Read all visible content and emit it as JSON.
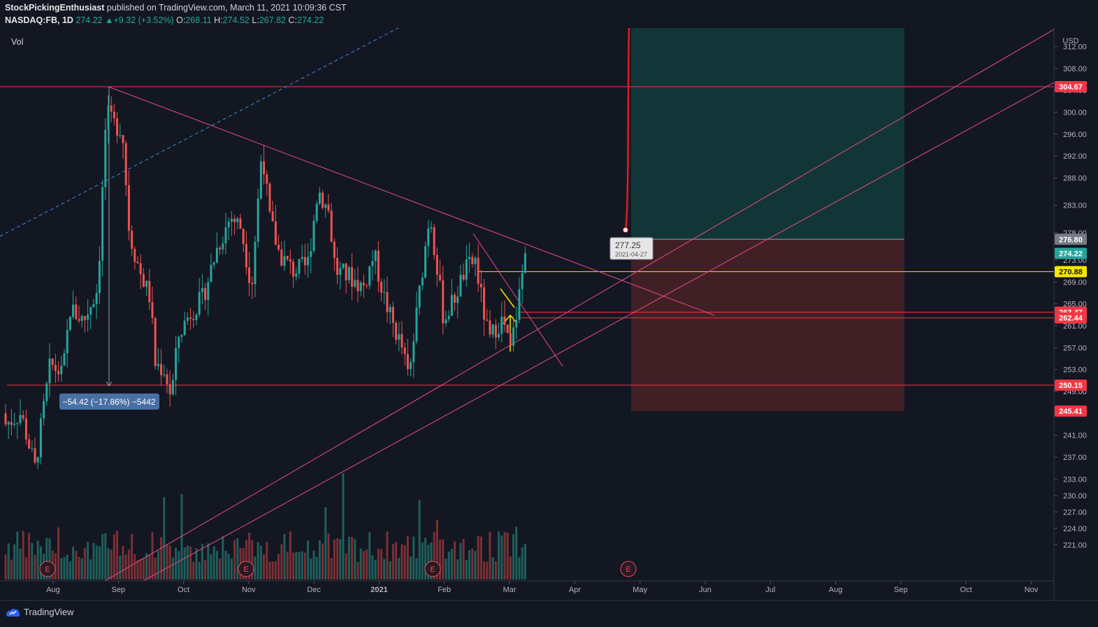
{
  "header": {
    "author": "StockPickingEnthusiast",
    "published_text": "published on TradingView.com, March 11, 2021 10:09:36 CST",
    "symbol": "NASDAQ:FB, 1D",
    "last": "274.22",
    "change": "+9.32 (+3.52%)",
    "o_label": "O:",
    "o_value": "268.11",
    "h_label": "H:",
    "h_value": "274.52",
    "l_label": "L:",
    "l_value": "267.82",
    "c_label": "C:",
    "c_value": "274.22"
  },
  "vol_label": "Vol",
  "currency": "USD",
  "footer_brand": "TradingView",
  "colors": {
    "background": "#131722",
    "up": "#26a69a",
    "down": "#ef5350",
    "axis_text": "#b2b5be"
  },
  "chart_data": {
    "type": "candlestick",
    "symbol": "NASDAQ:FB",
    "interval": "1D",
    "x_ticks": [
      "Aug",
      "Sep",
      "Oct",
      "Nov",
      "Dec",
      "2021",
      "Feb",
      "Mar",
      "Apr",
      "May",
      "Jun",
      "Jul",
      "Aug",
      "Sep",
      "Oct",
      "Nov"
    ],
    "y_ticks": [
      "312.00",
      "308.00",
      "304.00",
      "300.00",
      "296.00",
      "292.00",
      "288.00",
      "283.00",
      "278.00",
      "273.00",
      "269.00",
      "265.00",
      "261.00",
      "257.00",
      "253.00",
      "249.00",
      "245.00",
      "241.00",
      "237.00",
      "233.00",
      "230.00",
      "227.00",
      "224.00",
      "221.00"
    ],
    "ylim": [
      220,
      315
    ],
    "price_labels": [
      {
        "value": "304.67",
        "color": "#f23645"
      },
      {
        "value": "276.80",
        "color": "#787b86"
      },
      {
        "value": "274.22",
        "color": "#26a69a"
      },
      {
        "value": "270.88",
        "color": "#f7e600"
      },
      {
        "value": "263.47",
        "color": "#f23645"
      },
      {
        "value": "262.44",
        "color": "#f23645"
      },
      {
        "value": "250.15",
        "color": "#f23645"
      },
      {
        "value": "245.41",
        "color": "#f23645"
      }
    ],
    "measure_label": "−54.42 (−17.86%) −5442",
    "projection_label": {
      "value": "277.25",
      "date": "2021-04-27"
    },
    "earnings_marker": "E",
    "ohlc_last": {
      "open": 268.11,
      "high": 274.52,
      "low": 267.82,
      "close": 274.22
    }
  }
}
